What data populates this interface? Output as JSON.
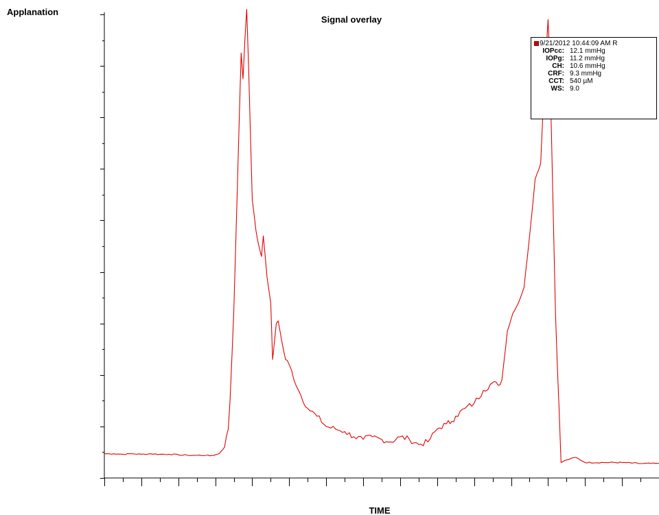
{
  "chart_data": {
    "type": "line",
    "title": "Signal overlay",
    "ylabel": "Applanation",
    "xlabel": "TIME",
    "grid": false,
    "legend_position": "top-right",
    "xlim": [
      0,
      30
    ],
    "ylim": [
      0,
      9
    ],
    "series": [
      {
        "color": "#e00000",
        "x": [
          0,
          0.5,
          1,
          1.5,
          2,
          2.5,
          3,
          3.5,
          4,
          4.5,
          5,
          5.5,
          5.7,
          6,
          6.2,
          6.5,
          6.7,
          6.8,
          7.0,
          7.2,
          7.3,
          7.4,
          7.5,
          7.6,
          7.7,
          7.8,
          8.0,
          8.2,
          8.3,
          8.5,
          8.6,
          8.8,
          9.0,
          9.1,
          9.3,
          9.4,
          9.6,
          9.8,
          10,
          10.5,
          11,
          11.5,
          12,
          12.5,
          13,
          13.5,
          14,
          14.5,
          15,
          15.5,
          16,
          16.5,
          17,
          17.5,
          18,
          18.5,
          18.8,
          19,
          19.5,
          20,
          20.5,
          21,
          21.3,
          21.5,
          21.8,
          22.1,
          22.4,
          22.7,
          23,
          23.3,
          23.6,
          23.8,
          24.0,
          24.1,
          24.4,
          24.7,
          25,
          25.5,
          26,
          27,
          28,
          29,
          30
        ],
        "y": [
          0.47,
          0.47,
          0.46,
          0.47,
          0.46,
          0.47,
          0.46,
          0.46,
          0.45,
          0.44,
          0.44,
          0.44,
          0.43,
          0.45,
          0.47,
          0.6,
          0.95,
          1.5,
          3.2,
          5.7,
          7.0,
          8.25,
          7.75,
          8.5,
          9.1,
          8.0,
          5.4,
          4.8,
          4.6,
          4.3,
          4.7,
          3.9,
          3.4,
          2.3,
          3.0,
          3.05,
          2.65,
          2.3,
          2.2,
          1.7,
          1.35,
          1.2,
          1.0,
          0.95,
          0.9,
          0.8,
          0.75,
          0.8,
          0.75,
          0.7,
          0.8,
          0.75,
          0.65,
          0.7,
          0.95,
          1.05,
          1.1,
          1.2,
          1.35,
          1.45,
          1.7,
          1.85,
          1.8,
          1.9,
          2.85,
          3.2,
          3.4,
          3.7,
          4.7,
          5.8,
          6.1,
          7.7,
          8.9,
          8.0,
          3.2,
          0.3,
          0.35,
          0.4,
          0.3,
          0.3,
          0.3,
          0.28,
          0.28
        ]
      }
    ]
  },
  "legend": {
    "timestamp": "9/21/2012 10:44:09 AM R",
    "rows": [
      {
        "key": "IOPcc:",
        "value": "12.1  mmHg"
      },
      {
        "key": "IOPg:",
        "value": "11.2  mmHg"
      },
      {
        "key": "CH:",
        "value": "10.6  mmHg"
      },
      {
        "key": "CRF:",
        "value": "  9.3  mmHg"
      },
      {
        "key": "CCT:",
        "value": "540  µM"
      },
      {
        "key": "WS:",
        "value": "  9.0"
      }
    ]
  },
  "colors": {
    "series": "#e00000",
    "axis": "#000000",
    "legend_swatch": "#cc0000"
  }
}
